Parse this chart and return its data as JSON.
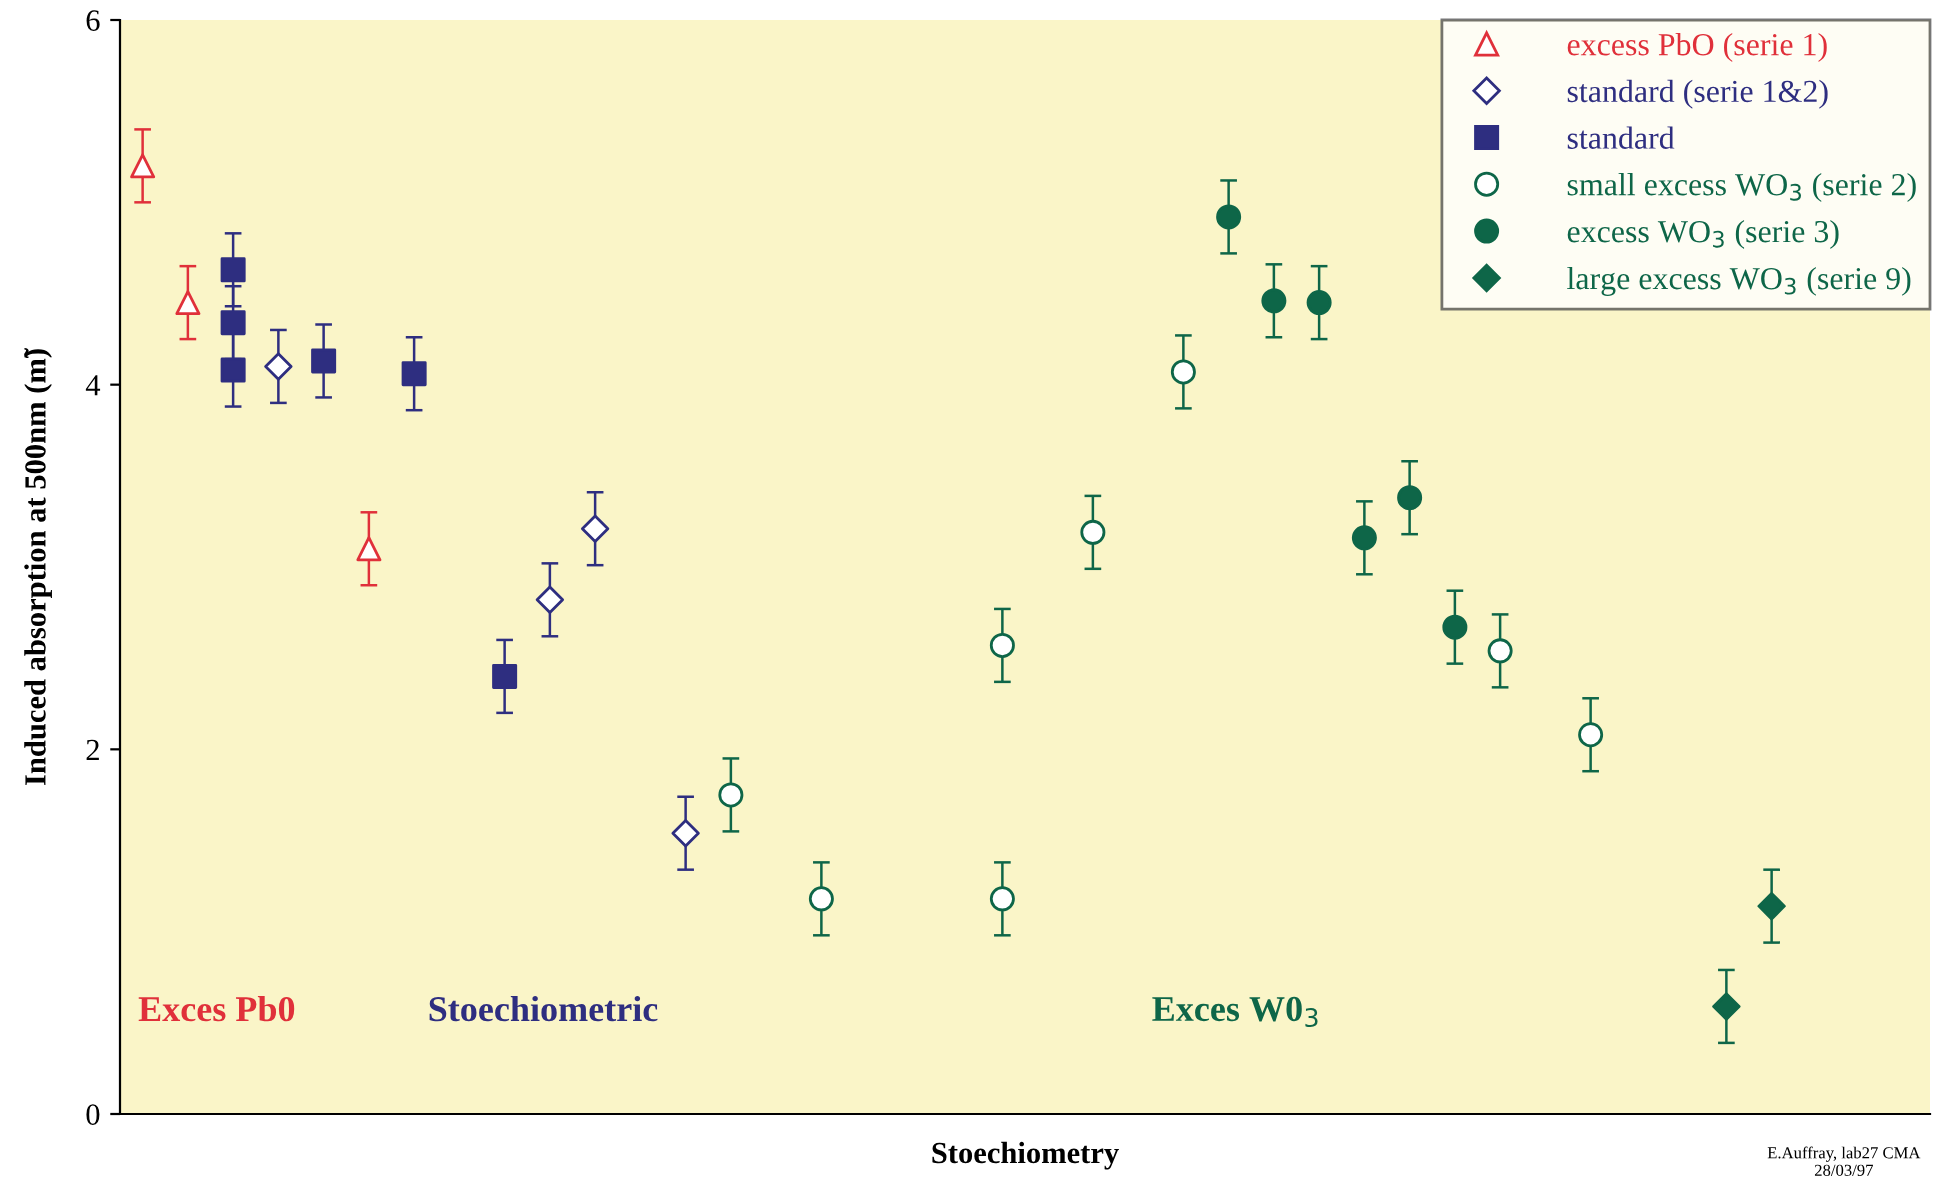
{
  "chart_data": {
    "type": "scatter",
    "xlabel": "Stoechiometry",
    "ylabel": "Induced absorption at 500nm (m̃)",
    "categories": [
      null,
      null,
      null,
      null,
      null,
      null,
      null,
      null,
      null,
      null,
      null,
      null,
      null,
      null,
      null,
      null,
      null,
      null,
      null,
      null,
      null,
      null,
      null,
      null,
      null,
      null,
      null,
      null,
      null,
      null,
      null,
      null,
      null,
      null,
      null,
      null,
      null,
      null,
      null,
      null
    ],
    "ylim": [
      0,
      6
    ],
    "yticks": [
      0,
      2,
      4,
      6
    ],
    "tick_labels": "y",
    "grid": false,
    "legend": "top right",
    "series": [
      {
        "name": "excess PbO (serie 1)",
        "color": "#e0303a",
        "marker": "triangle",
        "values": [
          5.2,
          4.45,
          null,
          null,
          null,
          3.1,
          null,
          null,
          null,
          null,
          null,
          null,
          null,
          null,
          null,
          null,
          null,
          null,
          null,
          null,
          null,
          null,
          null,
          null,
          null,
          null,
          null,
          null,
          null,
          null,
          null,
          null,
          null,
          null,
          null,
          null,
          null,
          null,
          null,
          null
        ],
        "errors": [
          0.2,
          0.2,
          null,
          null,
          null,
          0.2,
          null,
          null,
          null,
          null,
          null,
          null,
          null,
          null,
          null,
          null,
          null,
          null,
          null,
          null,
          null,
          null,
          null,
          null,
          null,
          null,
          null,
          null,
          null,
          null,
          null,
          null,
          null,
          null,
          null,
          null,
          null,
          null,
          null,
          null
        ]
      },
      {
        "name": "standard (serie 1&2)",
        "color": "#2e2e80",
        "marker": "diamond",
        "values": [
          null,
          null,
          null,
          4.1,
          null,
          null,
          null,
          null,
          null,
          2.82,
          3.21,
          null,
          1.54,
          null,
          null,
          null,
          null,
          null,
          null,
          null,
          null,
          null,
          null,
          null,
          null,
          null,
          null,
          null,
          null,
          null,
          null,
          null,
          null,
          null,
          null,
          null,
          null,
          null,
          null,
          null
        ],
        "errors": [
          null,
          null,
          null,
          0.2,
          null,
          null,
          null,
          null,
          null,
          0.2,
          0.2,
          null,
          0.2,
          null,
          null,
          null,
          null,
          null,
          null,
          null,
          null,
          null,
          null,
          null,
          null,
          null,
          null,
          null,
          null,
          null,
          null,
          null,
          null,
          null,
          null,
          null,
          null,
          null,
          null,
          null
        ]
      },
      {
        "name": "standard",
        "color": "#2e2e80",
        "marker": "square",
        "values": [
          null,
          null,
          4.63,
          null,
          4.13,
          null,
          4.06,
          null,
          2.4,
          null,
          null,
          null,
          null,
          null,
          null,
          null,
          null,
          null,
          null,
          null,
          null,
          null,
          null,
          null,
          null,
          null,
          null,
          null,
          null,
          null,
          null,
          null,
          null,
          null,
          null,
          null,
          null,
          null,
          null,
          null
        ],
        "errors": [
          null,
          null,
          0.2,
          null,
          0.2,
          null,
          0.2,
          null,
          0.2,
          null,
          null,
          null,
          null,
          null,
          null,
          null,
          null,
          null,
          null,
          null,
          null,
          null,
          null,
          null,
          null,
          null,
          null,
          null,
          null,
          null,
          null,
          null,
          null,
          null,
          null,
          null,
          null,
          null,
          null,
          null
        ]
      },
      {
        "name": "small excess WO$_{3}$ (serie 2)",
        "color": "#0e6648",
        "marker": "circle",
        "values": [
          null,
          null,
          null,
          null,
          null,
          null,
          null,
          null,
          null,
          null,
          null,
          null,
          null,
          1.75,
          null,
          1.18,
          null,
          null,
          null,
          2.57,
          null,
          3.19,
          null,
          4.07,
          null,
          null,
          null,
          null,
          null,
          null,
          2.54,
          null,
          2.08,
          null,
          null,
          null,
          null,
          null,
          null,
          null
        ],
        "errors": [
          null,
          null,
          null,
          null,
          null,
          null,
          null,
          null,
          null,
          null,
          null,
          null,
          null,
          0.2,
          null,
          0.2,
          null,
          null,
          null,
          0.2,
          null,
          0.2,
          null,
          0.2,
          null,
          null,
          null,
          null,
          null,
          null,
          0.2,
          null,
          0.2,
          null,
          null,
          null,
          null,
          null,
          null,
          null
        ]
      },
      {
        "name": "excess WO$_{3}$ (serie 3)",
        "color": "#0e6648",
        "marker": "circle",
        "values": [
          null,
          null,
          null,
          null,
          null,
          null,
          null,
          null,
          null,
          null,
          null,
          null,
          null,
          null,
          null,
          null,
          null,
          null,
          null,
          null,
          null,
          null,
          null,
          null,
          4.92,
          4.46,
          4.45,
          3.16,
          3.38,
          2.67,
          null,
          null,
          null,
          null,
          null,
          null,
          null,
          null,
          null,
          null
        ],
        "errors": [
          null,
          null,
          null,
          null,
          null,
          null,
          null,
          null,
          null,
          null,
          null,
          null,
          null,
          null,
          null,
          null,
          null,
          null,
          null,
          null,
          null,
          null,
          null,
          null,
          0.2,
          0.2,
          0.2,
          0.2,
          0.2,
          0.2,
          null,
          null,
          null,
          null,
          null,
          null,
          null,
          null,
          null,
          null
        ]
      },
      {
        "name": "large excess WO$_{3}$ (serie 9)",
        "color": "#0e6648",
        "marker": "diamond",
        "values": [
          null,
          null,
          null,
          null,
          null,
          null,
          null,
          null,
          null,
          null,
          null,
          null,
          null,
          null,
          null,
          null,
          null,
          null,
          null,
          null,
          null,
          null,
          null,
          null,
          null,
          null,
          null,
          null,
          null,
          null,
          null,
          null,
          null,
          null,
          null,
          0.59,
          1.14,
          null,
          null,
          null
        ],
        "errors": [
          null,
          null,
          null,
          null,
          null,
          null,
          null,
          null,
          null,
          null,
          null,
          null,
          null,
          null,
          null,
          null,
          null,
          null,
          null,
          null,
          null,
          null,
          null,
          null,
          null,
          null,
          null,
          null,
          null,
          null,
          null,
          null,
          null,
          null,
          null,
          0.2,
          0.2,
          null,
          null,
          null
        ]
      },
      {
        "color": "#2e2e80",
        "marker": "square",
        "values": [
          null,
          null,
          4.34,
          null,
          null,
          null,
          null,
          null,
          null,
          null,
          null,
          null,
          null,
          null,
          null,
          null,
          null,
          null,
          null,
          null,
          null,
          null,
          null,
          null,
          null,
          null,
          null,
          null,
          null,
          null,
          null,
          null,
          null,
          null,
          null,
          null,
          null,
          null,
          null,
          null
        ],
        "errors": [
          null,
          null,
          0.2,
          null,
          null,
          null,
          null,
          null,
          null,
          null,
          null,
          null,
          null,
          null,
          null,
          null,
          null,
          null,
          null,
          null,
          null,
          null,
          null,
          null,
          null,
          null,
          null,
          null,
          null,
          null,
          null,
          null,
          null,
          null,
          null,
          null,
          null,
          null,
          null,
          null
        ]
      },
      {
        "color": "#2e2e80",
        "marker": "square",
        "values": [
          null,
          null,
          4.08,
          null,
          null,
          null,
          null,
          null,
          null,
          null,
          null,
          null,
          null,
          null,
          null,
          null,
          null,
          null,
          null,
          null,
          null,
          null,
          null,
          null,
          null,
          null,
          null,
          null,
          null,
          null,
          null,
          null,
          null,
          null,
          null,
          null,
          null,
          null,
          null,
          null
        ],
        "errors": [
          null,
          null,
          0.2,
          null,
          null,
          null,
          null,
          null,
          null,
          null,
          null,
          null,
          null,
          null,
          null,
          null,
          null,
          null,
          null,
          null,
          null,
          null,
          null,
          null,
          null,
          null,
          null,
          null,
          null,
          null,
          null,
          null,
          null,
          null,
          null,
          null,
          null,
          null,
          null,
          null
        ]
      },
      {
        "color": "#0e6648",
        "marker": "circle",
        "values": [
          null,
          null,
          null,
          null,
          null,
          null,
          null,
          null,
          null,
          null,
          null,
          null,
          null,
          null,
          null,
          null,
          null,
          null,
          null,
          1.18,
          null,
          null,
          null,
          null,
          null,
          null,
          null,
          null,
          null,
          null,
          null,
          null,
          null,
          null,
          null,
          null,
          null,
          null,
          null,
          null
        ],
        "errors": [
          null,
          null,
          null,
          null,
          null,
          null,
          null,
          null,
          null,
          null,
          null,
          null,
          null,
          null,
          null,
          null,
          null,
          null,
          null,
          0.2,
          null,
          null,
          null,
          null,
          null,
          null,
          null,
          null,
          null,
          null,
          null,
          null,
          null,
          null,
          null,
          null,
          null,
          null,
          null,
          null
        ]
      }
    ],
    "annotations": [
      "Exces Pb0",
      "Stoechiometric",
      "Exces W0$_{3}$",
      "E.Auffray, lab27 CMA\n28/03/97"
    ]
  }
}
